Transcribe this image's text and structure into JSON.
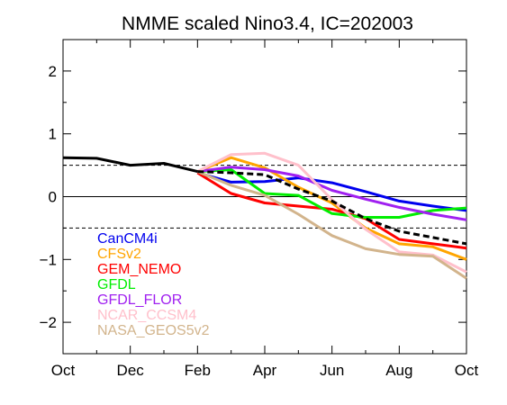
{
  "chart_data": {
    "type": "line",
    "title": "NMME scaled Nino3.4, IC=202003",
    "xlabel": "",
    "ylabel": "",
    "x_ticks": [
      "Oct",
      "Dec",
      "Feb",
      "Apr",
      "Jun",
      "Aug",
      "Oct"
    ],
    "y_ticks": [
      "2",
      "1",
      "0",
      "−1",
      "−2"
    ],
    "ylim": [
      -2.5,
      2.5
    ],
    "x_range_months": [
      0,
      12
    ],
    "reference_lines": [
      {
        "y": 0.5,
        "style": "dashed"
      },
      {
        "y": 0,
        "style": "solid"
      },
      {
        "y": -0.5,
        "style": "dashed"
      }
    ],
    "observed": {
      "color": "#000000",
      "x": [
        0,
        1,
        2,
        3,
        4
      ],
      "values": [
        0.62,
        0.61,
        0.5,
        0.53,
        0.4
      ]
    },
    "ensemble_mean": {
      "color": "#000000",
      "style": "dashed",
      "x": [
        4,
        5,
        6,
        7,
        8,
        9,
        10,
        11,
        12
      ],
      "values": [
        0.4,
        0.38,
        0.35,
        0.12,
        -0.07,
        -0.35,
        -0.55,
        -0.65,
        -0.75
      ]
    },
    "series": [
      {
        "name": "CanCM4i",
        "color": "#0000ee",
        "x": [
          4,
          5,
          6,
          7,
          8,
          9,
          10,
          11,
          12
        ],
        "values": [
          0.38,
          0.23,
          0.24,
          0.3,
          0.22,
          0.08,
          -0.07,
          -0.15,
          -0.22
        ]
      },
      {
        "name": "CFSv2",
        "color": "#ffa500",
        "x": [
          4,
          5,
          6,
          7,
          8,
          9,
          10,
          11,
          12
        ],
        "values": [
          0.4,
          0.62,
          0.46,
          0.15,
          -0.1,
          -0.5,
          -0.75,
          -0.8,
          -1.0
        ]
      },
      {
        "name": "GEM_NEMO",
        "color": "#ff0000",
        "x": [
          4,
          5,
          6,
          7,
          8,
          9,
          10,
          11,
          12
        ],
        "values": [
          0.38,
          0.05,
          -0.1,
          -0.15,
          -0.2,
          -0.35,
          -0.68,
          -0.75,
          -0.82
        ]
      },
      {
        "name": "GFDL",
        "color": "#00ee00",
        "x": [
          4,
          5,
          6,
          7,
          8,
          9,
          10,
          11,
          12
        ],
        "values": [
          0.4,
          0.43,
          0.05,
          0.02,
          -0.27,
          -0.33,
          -0.33,
          -0.22,
          -0.18
        ]
      },
      {
        "name": "GFDL_FLOR",
        "color": "#a020f0",
        "x": [
          4,
          5,
          6,
          7,
          8,
          9,
          10,
          11,
          12
        ],
        "values": [
          0.4,
          0.47,
          0.43,
          0.33,
          0.1,
          -0.04,
          -0.17,
          -0.28,
          -0.37
        ]
      },
      {
        "name": "NCAR_CCSM4",
        "color": "#ffc0cb",
        "x": [
          4,
          5,
          6,
          7,
          8,
          9,
          10,
          11,
          12
        ],
        "values": [
          0.4,
          0.67,
          0.69,
          0.5,
          -0.05,
          -0.52,
          -0.88,
          -0.93,
          -1.2
        ]
      },
      {
        "name": "NASA_GEOS5v2",
        "color": "#d2b48c",
        "x": [
          4,
          5,
          6,
          7,
          8,
          9,
          10,
          11,
          12
        ],
        "values": [
          0.4,
          0.18,
          0.02,
          -0.28,
          -0.62,
          -0.83,
          -0.92,
          -0.95,
          -1.3
        ]
      }
    ],
    "legend_position": "lower-left",
    "grid": false
  }
}
